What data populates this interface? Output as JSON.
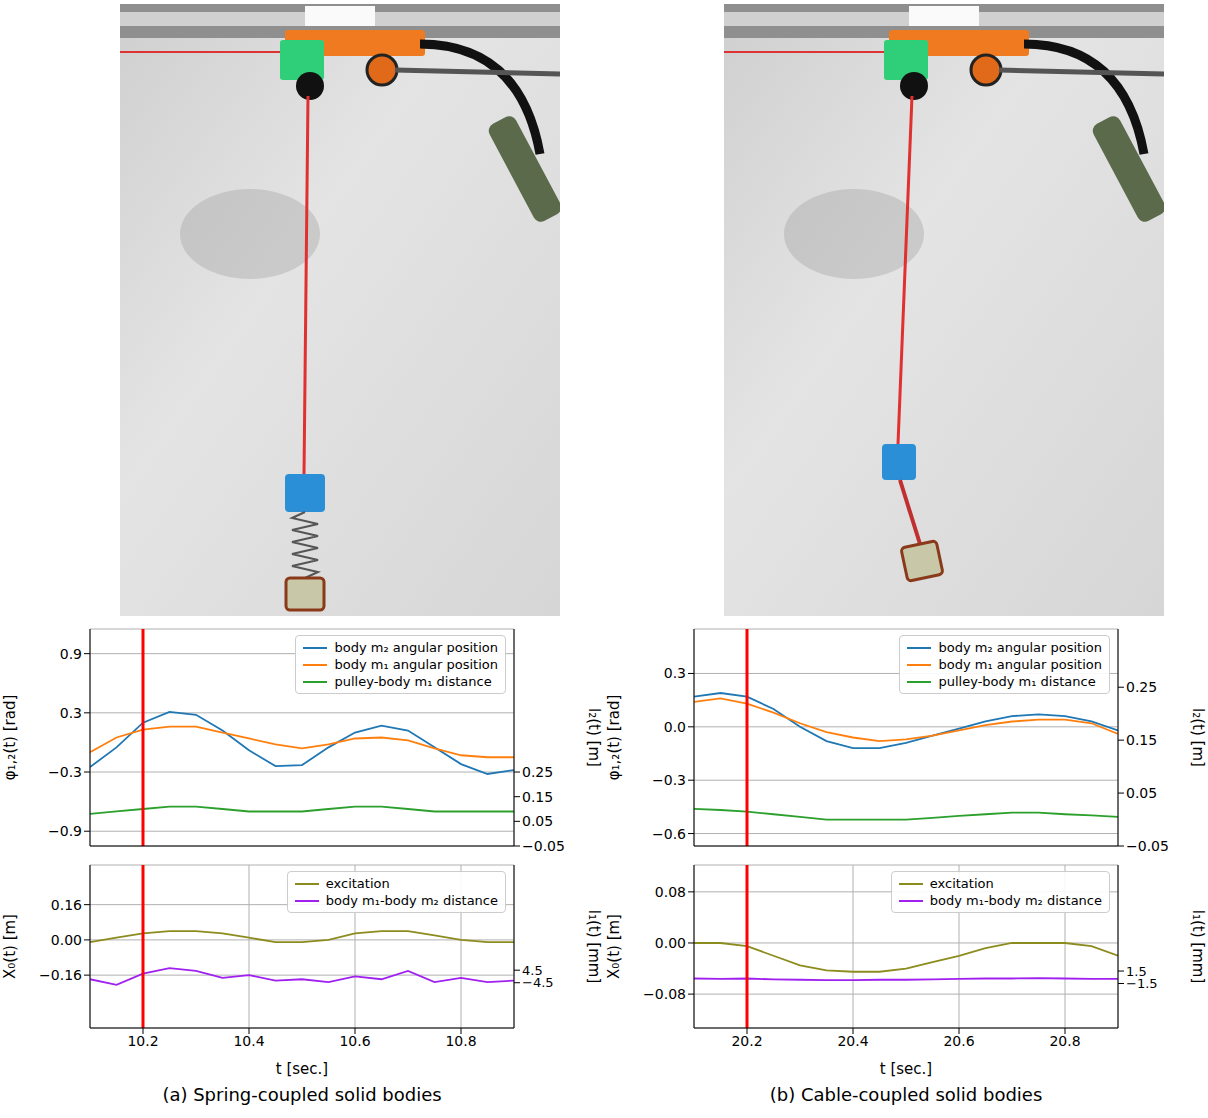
{
  "chart_data": [
    {
      "type": "line",
      "ylabel": "φ₁,₂(t) [rad]",
      "y2label": "l₂(t) [m]",
      "x": [
        10.1,
        10.15,
        10.2,
        10.25,
        10.3,
        10.35,
        10.4,
        10.45,
        10.5,
        10.55,
        10.6,
        10.65,
        10.7,
        10.75,
        10.8,
        10.85,
        10.9
      ],
      "xlim": [
        10.1,
        10.9
      ],
      "xticks": [
        10.2,
        10.4,
        10.6,
        10.8
      ],
      "ylim": [
        -1.05,
        1.15
      ],
      "yticks": [
        0.9,
        0.3,
        {
          "value": -0.3,
          "label": "−0.3"
        },
        {
          "value": -0.9,
          "label": "−0.9"
        }
      ],
      "y2lim": [
        -0.05,
        0.83
      ],
      "y2ticks": [
        {
          "value": -0.05,
          "label": "−0.05"
        },
        0.05,
        0.15,
        0.25
      ],
      "series": [
        {
          "name": "body m₂ angular position",
          "color": "#1f77b4",
          "values": [
            -0.25,
            -0.05,
            0.2,
            0.31,
            0.28,
            0.12,
            -0.08,
            -0.24,
            -0.23,
            -0.05,
            0.1,
            0.17,
            0.12,
            -0.05,
            -0.22,
            -0.32,
            -0.28
          ]
        },
        {
          "name": "body m₁ angular position",
          "color": "#ff7f0e",
          "values": [
            -0.1,
            0.05,
            0.13,
            0.16,
            0.16,
            0.1,
            0.04,
            -0.02,
            -0.06,
            -0.02,
            0.04,
            0.05,
            0.02,
            -0.06,
            -0.13,
            -0.15,
            -0.15
          ]
        },
        {
          "name": "pulley-body m₁ distance",
          "color": "#2ca02c",
          "axis": "y2",
          "values": [
            0.08,
            0.09,
            0.1,
            0.11,
            0.11,
            0.1,
            0.09,
            0.09,
            0.09,
            0.1,
            0.11,
            0.11,
            0.1,
            0.09,
            0.09,
            0.09,
            0.09
          ]
        }
      ],
      "vline": 10.2,
      "grid": true,
      "legend": "upper right",
      "tick_labels": "y"
    },
    {
      "type": "line",
      "xlabel": "t [sec.]",
      "ylabel": "X₀(t) [m]",
      "y2label": "l₁(t) [mm]",
      "x": [
        10.1,
        10.15,
        10.2,
        10.25,
        10.3,
        10.35,
        10.4,
        10.45,
        10.5,
        10.55,
        10.6,
        10.65,
        10.7,
        10.75,
        10.8,
        10.85,
        10.9
      ],
      "xlim": [
        10.1,
        10.9
      ],
      "xticks": [
        10.2,
        10.4,
        10.6,
        10.8
      ],
      "ylim": [
        -0.4,
        0.34
      ],
      "yticks": [
        0.16,
        {
          "value": 0,
          "label": "0.00"
        },
        {
          "value": -0.16,
          "label": "−0.16"
        }
      ],
      "y2lim": [
        -37,
        80
      ],
      "y2ticks": [
        4.5,
        {
          "value": -4.5,
          "label": "−4.5"
        }
      ],
      "series": [
        {
          "name": "excitation",
          "color": "#8c8c1e",
          "values": [
            -0.01,
            0.01,
            0.03,
            0.04,
            0.04,
            0.03,
            0.01,
            -0.01,
            -0.01,
            0.0,
            0.03,
            0.04,
            0.04,
            0.02,
            0.0,
            -0.01,
            -0.01
          ]
        },
        {
          "name": "body m₁-body m₂ distance",
          "color": "#a020f0",
          "axis": "y2",
          "values": [
            -2,
            -6,
            2,
            6,
            4,
            -1,
            1,
            -3,
            -2,
            -4,
            0,
            -2,
            4,
            -4,
            -1,
            -4,
            -3
          ]
        }
      ],
      "vline": 10.2,
      "grid": true,
      "legend": "upper right"
    },
    {
      "type": "line",
      "ylabel": "φ₁,₂(t) [rad]",
      "y2label": "l₂(t) [m]",
      "x": [
        20.1,
        20.15,
        20.2,
        20.25,
        20.3,
        20.35,
        20.4,
        20.45,
        20.5,
        20.55,
        20.6,
        20.65,
        20.7,
        20.75,
        20.8,
        20.85,
        20.9
      ],
      "xlim": [
        20.1,
        20.9
      ],
      "xticks": [
        20.2,
        20.4,
        20.6,
        20.8
      ],
      "ylim": [
        -0.67,
        0.55
      ],
      "yticks": [
        0.3,
        {
          "value": 0,
          "label": "0.0"
        },
        {
          "value": -0.3,
          "label": "−0.3"
        },
        {
          "value": -0.6,
          "label": "−0.6"
        }
      ],
      "y2lim": [
        -0.05,
        0.36
      ],
      "y2ticks": [
        {
          "value": -0.05,
          "label": "−0.05"
        },
        0.05,
        0.15,
        0.25
      ],
      "series": [
        {
          "name": "body m₂ angular position",
          "color": "#1f77b4",
          "values": [
            0.17,
            0.19,
            0.17,
            0.1,
            0.0,
            -0.08,
            -0.12,
            -0.12,
            -0.09,
            -0.05,
            -0.01,
            0.03,
            0.06,
            0.07,
            0.06,
            0.03,
            -0.02
          ]
        },
        {
          "name": "body m₁ angular position",
          "color": "#ff7f0e",
          "values": [
            0.14,
            0.16,
            0.13,
            0.08,
            0.02,
            -0.03,
            -0.06,
            -0.08,
            -0.07,
            -0.05,
            -0.02,
            0.01,
            0.03,
            0.04,
            0.04,
            0.02,
            -0.04
          ]
        },
        {
          "name": "pulley-body m₁ distance",
          "color": "#2ca02c",
          "axis": "y2",
          "values": [
            0.02,
            0.018,
            0.015,
            0.01,
            0.005,
            0.0,
            0.0,
            0.0,
            0.0,
            0.003,
            0.007,
            0.01,
            0.013,
            0.013,
            0.01,
            0.008,
            0.005
          ]
        }
      ],
      "vline": 20.2,
      "grid": true,
      "legend": "upper right",
      "tick_labels": "y"
    },
    {
      "type": "line",
      "xlabel": "t [sec.]",
      "ylabel": "X₀(t) [m]",
      "y2label": "l₁(t) [mm]",
      "x": [
        20.1,
        20.15,
        20.2,
        20.25,
        20.3,
        20.35,
        20.4,
        20.45,
        20.5,
        20.55,
        20.6,
        20.65,
        20.7,
        20.75,
        20.8,
        20.85,
        20.9
      ],
      "xlim": [
        20.1,
        20.9
      ],
      "xticks": [
        20.2,
        20.4,
        20.6,
        20.8
      ],
      "ylim": [
        -0.133,
        0.122
      ],
      "yticks": [
        0.08,
        {
          "value": 0,
          "label": "0.00"
        },
        {
          "value": -0.08,
          "label": "−0.08"
        }
      ],
      "y2lim": [
        -12.2,
        27
      ],
      "y2ticks": [
        1.5,
        {
          "value": -1.5,
          "label": "−1.5"
        }
      ],
      "series": [
        {
          "name": "excitation",
          "color": "#8c8c1e",
          "values": [
            0.0,
            0.0,
            -0.005,
            -0.02,
            -0.035,
            -0.043,
            -0.045,
            -0.045,
            -0.04,
            -0.03,
            -0.02,
            -0.008,
            0.0,
            0.0,
            0.0,
            -0.005,
            -0.02
          ]
        },
        {
          "name": "body m₁-body m₂ distance",
          "color": "#a020f0",
          "axis": "y2",
          "values": [
            -0.3,
            -0.4,
            -0.3,
            -0.5,
            -0.6,
            -0.7,
            -0.7,
            -0.6,
            -0.6,
            -0.5,
            -0.4,
            -0.3,
            -0.3,
            -0.2,
            -0.3,
            -0.4,
            -0.4
          ]
        }
      ],
      "vline": 20.2,
      "grid": true,
      "legend": "upper right"
    }
  ],
  "captions": [
    "(a) Spring-coupled solid bodies",
    "(b) Cable-coupled solid bodies"
  ]
}
